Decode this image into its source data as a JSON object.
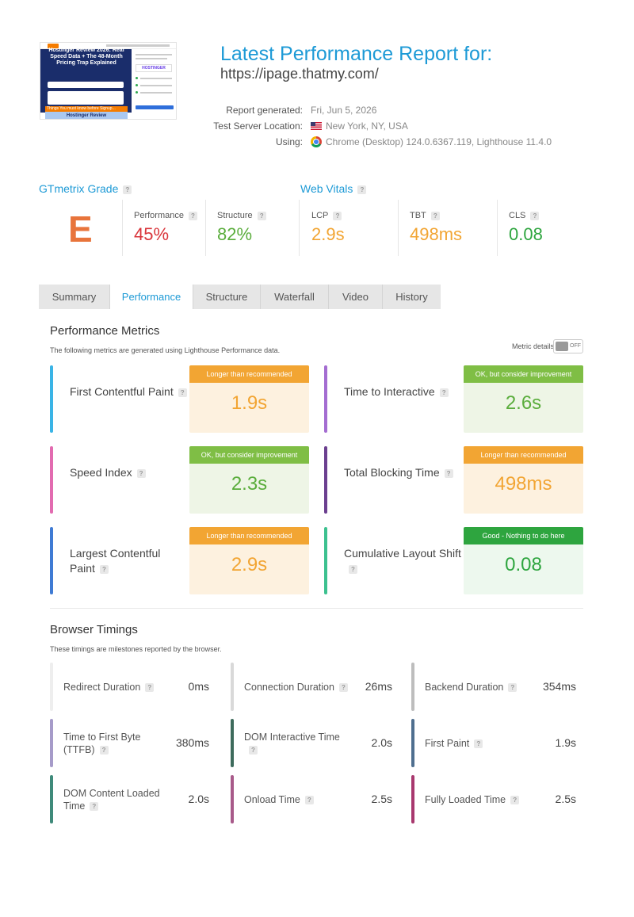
{
  "header": {
    "title": "Latest Performance Report for:",
    "url": "https://ipage.thatmy.com/",
    "thumbnail": {
      "hero_title": "Hostinger Review 2026: Real Speed Data + The 48-Month Pricing Trap Explained",
      "strip_text": "Things You must know before Signup...",
      "bottom_text": "Hostinger Review",
      "brand": "HOSTINGER"
    },
    "meta": [
      {
        "label": "Report generated:",
        "value": "Fri, Jun 5, 2026",
        "icon": ""
      },
      {
        "label": "Test Server Location:",
        "value": "New York, NY, USA",
        "icon": "us-flag-icon"
      },
      {
        "label": "Using:",
        "value": "Chrome (Desktop) 124.0.6367.119, Lighthouse 11.4.0",
        "icon": "chrome-icon"
      }
    ]
  },
  "grade": {
    "heading": "GTmetrix Grade",
    "letter": "E",
    "performance": {
      "label": "Performance",
      "value": "45%",
      "color": "#d9353b"
    },
    "structure": {
      "label": "Structure",
      "value": "82%",
      "color": "#5aad3c"
    }
  },
  "vitals": {
    "heading": "Web Vitals",
    "lcp": {
      "label": "LCP",
      "value": "2.9s",
      "color": "#f2a533"
    },
    "tbt": {
      "label": "TBT",
      "value": "498ms",
      "color": "#f2a533"
    },
    "cls": {
      "label": "CLS",
      "value": "0.08",
      "color": "#2ea53f"
    }
  },
  "tabs": [
    "Summary",
    "Performance",
    "Structure",
    "Waterfall",
    "Video",
    "History"
  ],
  "active_tab": "Performance",
  "performance_metrics": {
    "title": "Performance Metrics",
    "subtitle": "The following metrics are generated using Lighthouse Performance data.",
    "details_label": "Metric details",
    "toggle_state": "OFF",
    "items": [
      {
        "name": "First Contentful Paint",
        "badge": "Longer than recommended",
        "value": "1.9s",
        "status": "orange",
        "bar": "#3ab4e6"
      },
      {
        "name": "Time to Interactive",
        "badge": "OK, but consider improvement",
        "value": "2.6s",
        "status": "green",
        "bar": "#a46dd1"
      },
      {
        "name": "Speed Index",
        "badge": "OK, but consider improvement",
        "value": "2.3s",
        "status": "green",
        "bar": "#e26bb0"
      },
      {
        "name": "Total Blocking Time",
        "badge": "Longer than recommended",
        "value": "498ms",
        "status": "orange",
        "bar": "#6b3f8f"
      },
      {
        "name": "Largest Contentful Paint",
        "badge": "Longer than recommended",
        "value": "2.9s",
        "status": "orange",
        "bar": "#3f7bd4"
      },
      {
        "name": "Cumulative Layout Shift",
        "badge": "Good - Nothing to do here",
        "value": "0.08",
        "status": "good",
        "bar": "#3cc18f"
      }
    ]
  },
  "browser_timings": {
    "title": "Browser Timings",
    "subtitle": "These timings are milestones reported by the browser.",
    "items": [
      {
        "label": "Redirect Duration",
        "value": "0ms",
        "bar": "#eeeeee"
      },
      {
        "label": "Connection Duration",
        "value": "26ms",
        "bar": "#d9d9d9"
      },
      {
        "label": "Backend Duration",
        "value": "354ms",
        "bar": "#bdbdbd"
      },
      {
        "label": "Time to First Byte (TTFB)",
        "value": "380ms",
        "bar": "#a69bc9"
      },
      {
        "label": "DOM Interactive Time",
        "value": "2.0s",
        "bar": "#3d6b5c"
      },
      {
        "label": "First Paint",
        "value": "1.9s",
        "bar": "#4f6f8f"
      },
      {
        "label": "DOM Content Loaded Time",
        "value": "2.0s",
        "bar": "#3f8a7a"
      },
      {
        "label": "Onload Time",
        "value": "2.5s",
        "bar": "#a85a8a"
      },
      {
        "label": "Fully Loaded Time",
        "value": "2.5s",
        "bar": "#a8386e"
      }
    ]
  },
  "help_mark": "?"
}
